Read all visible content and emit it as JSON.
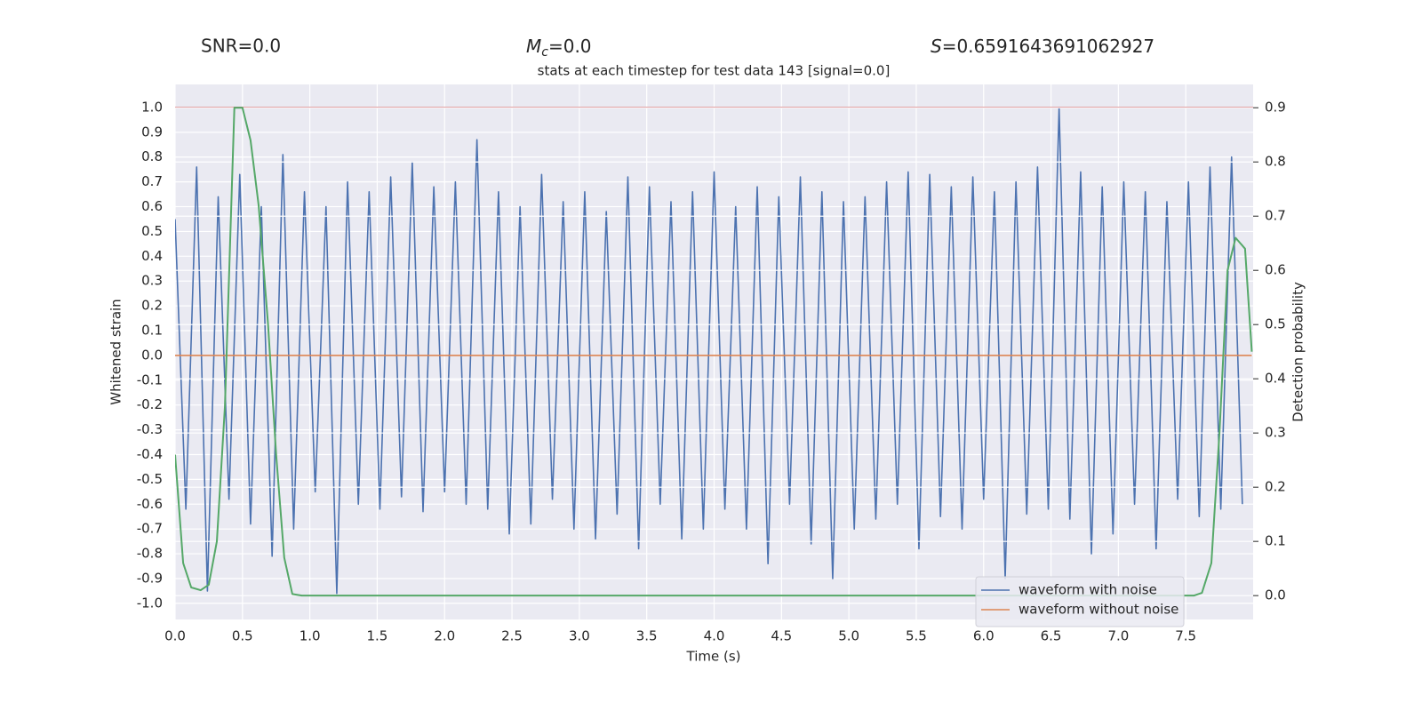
{
  "chart_data": {
    "type": "line",
    "title": "stats at each timestep for test data 143 [signal=0.0]",
    "stats": [
      {
        "text": "SNR=0.0"
      },
      {
        "symbol": "M",
        "subscript": "c",
        "text": "=0.0"
      },
      {
        "symbol": "S",
        "text": "=0.6591643691062927"
      }
    ],
    "xlabel": "Time (s)",
    "ylabel": "Whitened strain",
    "y2label": "Detection probability",
    "xlim": [
      0,
      8.0
    ],
    "ylim": [
      -1.065,
      1.093
    ],
    "y2lim": [
      -0.044,
      0.943
    ],
    "xticks": [
      {
        "value": 0,
        "label": "0.0"
      },
      0.5,
      {
        "value": 1,
        "label": "1.0"
      },
      1.5,
      {
        "value": 2,
        "label": "2.0"
      },
      2.5,
      {
        "value": 3,
        "label": "3.0"
      },
      3.5,
      {
        "value": 4,
        "label": "4.0"
      },
      4.5,
      {
        "value": 5,
        "label": "5.0"
      },
      5.5,
      {
        "value": 6,
        "label": "6.0"
      },
      6.5,
      {
        "value": 7,
        "label": "7.0"
      },
      7.5
    ],
    "yticks": [
      {
        "value": 1,
        "label": "1.0"
      },
      0.9,
      0.8,
      0.7,
      0.6,
      0.5,
      0.4,
      0.3,
      0.2,
      0.1,
      {
        "value": 0,
        "label": "0.0"
      },
      -0.1,
      -0.2,
      -0.3,
      -0.4,
      -0.5,
      -0.6,
      -0.7,
      -0.8,
      -0.9,
      {
        "value": -1,
        "label": "-1.0"
      }
    ],
    "y2ticks": [
      {
        "value": 0,
        "label": "0.0"
      },
      0.1,
      0.2,
      0.3,
      0.4,
      0.5,
      0.6,
      0.7,
      0.8,
      0.9
    ],
    "grid": true,
    "legend": "lower right",
    "series": [
      {
        "name": "waveform with noise",
        "color": "#4c72b0",
        "x": [
          0,
          0.08,
          0.16,
          0.24,
          0.32,
          0.4,
          0.48,
          0.56,
          0.64,
          0.72,
          0.8,
          0.88,
          0.96,
          1.04,
          1.12,
          1.2,
          1.28,
          1.36,
          1.44,
          1.52,
          1.6,
          1.68,
          1.76,
          1.84,
          1.92,
          2,
          2.08,
          2.16,
          2.24,
          2.32,
          2.4,
          2.48,
          2.56,
          2.64,
          2.72,
          2.8,
          2.88,
          2.96,
          3.04,
          3.12,
          3.2,
          3.28,
          3.36,
          3.44,
          3.52,
          3.6,
          3.68,
          3.76,
          3.84,
          3.92,
          4,
          4.08,
          4.16,
          4.24,
          4.32,
          4.4,
          4.48,
          4.56,
          4.64,
          4.72,
          4.8,
          4.88,
          4.96,
          5.04,
          5.12,
          5.2,
          5.28,
          5.36,
          5.44,
          5.52,
          5.6,
          5.68,
          5.76,
          5.84,
          5.92,
          6,
          6.08,
          6.16,
          6.24,
          6.32,
          6.4,
          6.48,
          6.56,
          6.64,
          6.72,
          6.8,
          6.88,
          6.96,
          7.04,
          7.12,
          7.2,
          7.28,
          7.36,
          7.44,
          7.52,
          7.6,
          7.68,
          7.76,
          7.84,
          7.92
        ],
        "values": [
          0.55,
          -0.62,
          0.76,
          -0.95,
          0.64,
          -0.58,
          0.73,
          -0.68,
          0.6,
          -0.81,
          0.81,
          -0.7,
          0.66,
          -0.55,
          0.6,
          -0.96,
          0.7,
          -0.6,
          0.66,
          -0.62,
          0.72,
          -0.57,
          0.78,
          -0.63,
          0.68,
          -0.55,
          0.7,
          -0.6,
          0.87,
          -0.62,
          0.66,
          -0.72,
          0.6,
          -0.68,
          0.73,
          -0.58,
          0.62,
          -0.7,
          0.66,
          -0.74,
          0.58,
          -0.64,
          0.72,
          -0.78,
          0.68,
          -0.6,
          0.62,
          -0.74,
          0.66,
          -0.7,
          0.74,
          -0.62,
          0.6,
          -0.7,
          0.68,
          -0.84,
          0.64,
          -0.6,
          0.72,
          -0.76,
          0.66,
          -0.9,
          0.62,
          -0.7,
          0.64,
          -0.66,
          0.7,
          -0.6,
          0.74,
          -0.78,
          0.73,
          -0.65,
          0.68,
          -0.7,
          0.72,
          -0.58,
          0.66,
          -0.9,
          0.7,
          -0.64,
          0.76,
          -0.62,
          1.0,
          -0.66,
          0.74,
          -0.8,
          0.68,
          -0.72,
          0.7,
          -0.6,
          0.66,
          -0.78,
          0.62,
          -0.58,
          0.7,
          -0.65,
          0.76,
          -0.62,
          0.8,
          -0.6
        ]
      },
      {
        "name": "waveform without noise",
        "color": "#dd8452",
        "x": [
          0,
          7.99
        ],
        "values": [
          0,
          0
        ]
      },
      {
        "color": "#55a868",
        "axis": "y2",
        "x": [
          0,
          0.06,
          0.12,
          0.19,
          0.25,
          0.31,
          0.37,
          0.44,
          0.5,
          0.56,
          0.62,
          0.69,
          0.75,
          0.81,
          0.87,
          0.94,
          7.56,
          7.62,
          7.69,
          7.75,
          7.81,
          7.87,
          7.94,
          7.99
        ],
        "values": [
          0.26,
          0.06,
          0.015,
          0.01,
          0.02,
          0.1,
          0.35,
          0.9,
          0.9,
          0.84,
          0.72,
          0.5,
          0.26,
          0.07,
          0.003,
          0.0,
          0.0,
          0.005,
          0.06,
          0.3,
          0.6,
          0.66,
          0.64,
          0.45
        ]
      }
    ],
    "hlines": [
      {
        "value": 1.0,
        "color": "#c44e52"
      }
    ]
  }
}
